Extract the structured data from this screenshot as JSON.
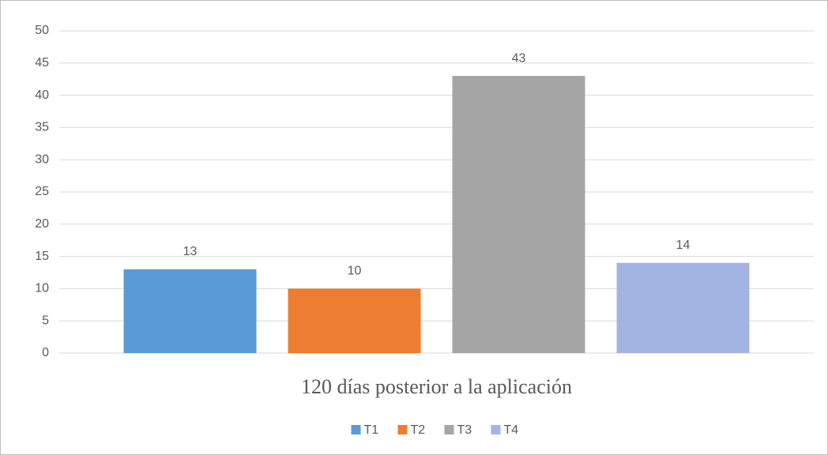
{
  "chart_data": {
    "type": "bar",
    "categories": [
      "120 días posterior a la aplicación"
    ],
    "series": [
      {
        "name": "T1",
        "color": "#5b9bd5",
        "values": [
          13
        ]
      },
      {
        "name": "T2",
        "color": "#ed7d31",
        "values": [
          10
        ]
      },
      {
        "name": "T3",
        "color": "#a5a5a5",
        "values": [
          43
        ]
      },
      {
        "name": "T4",
        "color": "#a4b4e2",
        "values": [
          14
        ]
      }
    ],
    "ylim": [
      0,
      50
    ],
    "yticks": [
      0,
      5,
      10,
      15,
      20,
      25,
      30,
      35,
      40,
      45,
      50
    ],
    "grid": true,
    "legend": "bottom"
  }
}
